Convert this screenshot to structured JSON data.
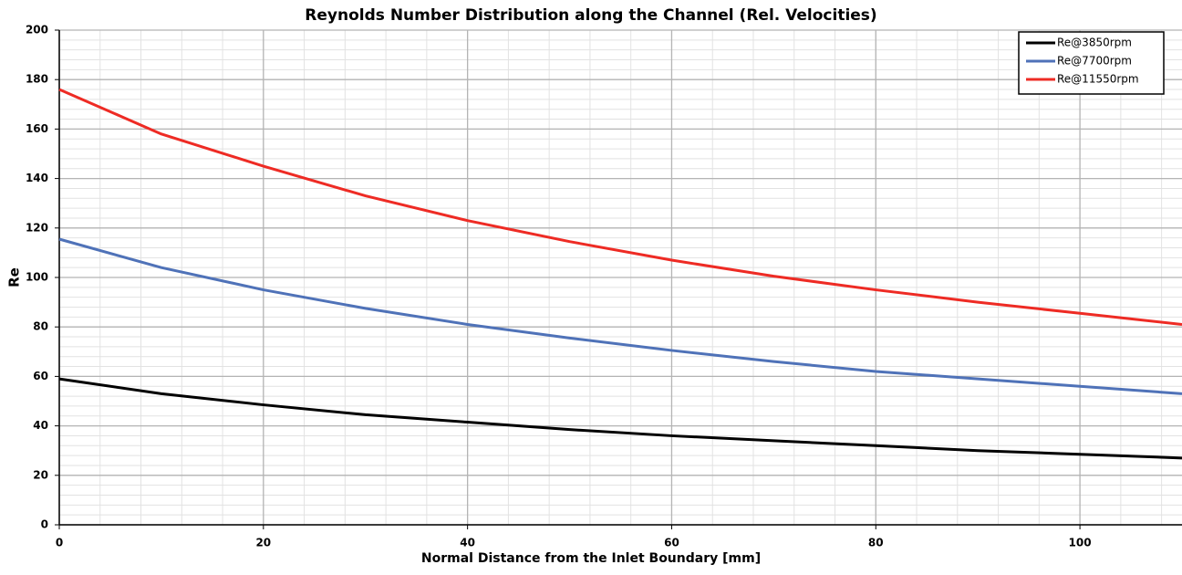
{
  "chart_data": {
    "type": "line",
    "title": "Reynolds Number Distribution along the Channel (Rel. Velocities)",
    "xlabel": "Normal Distance from the Inlet Boundary [mm]",
    "ylabel": "Re",
    "x": [
      0,
      10,
      20,
      30,
      40,
      50,
      60,
      70,
      80,
      90,
      100,
      110
    ],
    "series": [
      {
        "name": "Re@3850rpm",
        "color": "#000000",
        "values": [
          59,
          53,
          48.5,
          44.5,
          41.5,
          38.5,
          36,
          34,
          32,
          30,
          28.5,
          27
        ]
      },
      {
        "name": "Re@7700rpm",
        "color": "#4f72b8",
        "values": [
          115.5,
          104,
          95,
          87.5,
          81,
          75.5,
          70.5,
          66,
          62,
          59,
          56,
          53
        ]
      },
      {
        "name": "Re@11550rpm",
        "color": "#ee2b24",
        "values": [
          176,
          158,
          145,
          133,
          123,
          114.5,
          107,
          100.5,
          95,
          90,
          85.5,
          81
        ]
      }
    ],
    "xlim": [
      0,
      110
    ],
    "xticks": [
      0,
      20,
      40,
      60,
      80,
      100
    ],
    "ylim": [
      0,
      200
    ],
    "yticks": [
      0,
      20,
      40,
      60,
      80,
      100,
      120,
      140,
      160,
      180,
      200
    ],
    "grid": true,
    "legend": "upper right"
  }
}
